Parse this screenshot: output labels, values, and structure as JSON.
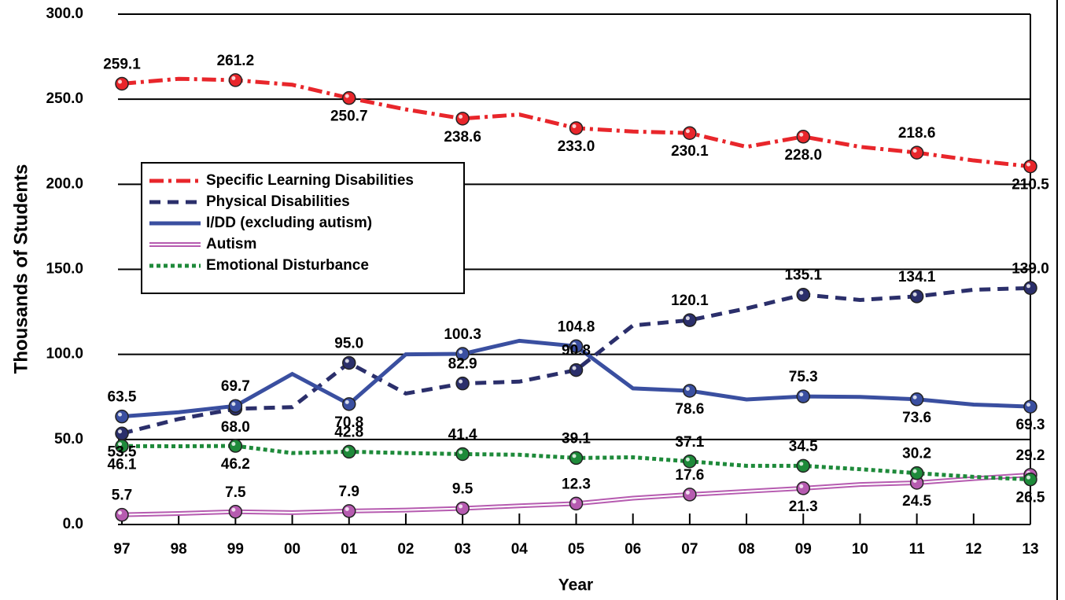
{
  "chart_data": {
    "type": "line",
    "x_label": "Year",
    "y_label": "Thousands of Students",
    "categories": [
      "97",
      "98",
      "99",
      "00",
      "01",
      "02",
      "03",
      "04",
      "05",
      "06",
      "07",
      "08",
      "09",
      "10",
      "11",
      "12",
      "13"
    ],
    "ylim": [
      0,
      300
    ],
    "yticks": [
      {
        "value": 0,
        "label": "0.0"
      },
      {
        "value": 50,
        "label": "50.0"
      },
      {
        "value": 100,
        "label": "100.0"
      },
      {
        "value": 150,
        "label": "150.0"
      },
      {
        "value": 200,
        "label": "200.0"
      },
      {
        "value": 250,
        "label": "250.0"
      },
      {
        "value": 300,
        "label": "300.0"
      }
    ],
    "grid": true,
    "legend": "upper left",
    "series": [
      {
        "name": "Specific Learning Disabilities",
        "color": "#e8262b",
        "style": "dashdot",
        "values": [
          259.1,
          262,
          261.2,
          258.5,
          250.7,
          244,
          238.6,
          241,
          233.0,
          231,
          230.1,
          222,
          228.0,
          222,
          218.6,
          214,
          210.5
        ],
        "value_labels": [
          "259.1",
          null,
          "261.2",
          null,
          "250.7",
          null,
          "238.6",
          null,
          "233.0",
          null,
          "230.1",
          null,
          "228.0",
          null,
          "218.6",
          null,
          "210.5"
        ]
      },
      {
        "name": "Physical Disabilities",
        "color": "#2b2f6b",
        "style": "dashed",
        "values": [
          53.5,
          62,
          68.0,
          69,
          95.0,
          77,
          82.9,
          84,
          90.8,
          117,
          120.1,
          127,
          135.1,
          132,
          134.1,
          138,
          139.0
        ],
        "value_labels": [
          "53.5",
          null,
          "68.0",
          null,
          "95.0",
          null,
          "82.9",
          null,
          "90.8",
          null,
          "120.1",
          null,
          "135.1",
          null,
          "134.1",
          null,
          "139.0"
        ]
      },
      {
        "name": "I/DD (excluding autism)",
        "color": "#3a4fa0",
        "style": "solid",
        "values": [
          63.5,
          66,
          69.7,
          88.5,
          70.8,
          100,
          100.3,
          108,
          104.8,
          80,
          78.6,
          73.5,
          75.3,
          75,
          73.6,
          70.5,
          69.3
        ],
        "value_labels": [
          "63.5",
          null,
          "69.7",
          null,
          "70.8",
          null,
          "100.3",
          null,
          "104.8",
          null,
          "78.6",
          null,
          "75.3",
          null,
          "73.6",
          null,
          "69.3"
        ]
      },
      {
        "name": "Autism",
        "color": "#b65bb0",
        "style": "double",
        "values": [
          5.7,
          6.5,
          7.5,
          7,
          7.9,
          8.5,
          9.5,
          11,
          12.3,
          15.5,
          17.6,
          19.5,
          21.3,
          23.5,
          24.5,
          27,
          29.2
        ],
        "value_labels": [
          "5.7",
          null,
          "7.5",
          null,
          "7.9",
          null,
          "9.5",
          null,
          "12.3",
          null,
          "17.6",
          null,
          "21.3",
          null,
          "24.5",
          null,
          "29.2"
        ]
      },
      {
        "name": "Emotional Disturbance",
        "color": "#1e8a3a",
        "style": "dotted",
        "values": [
          46.1,
          46,
          46.2,
          42,
          42.8,
          42,
          41.4,
          41,
          39.1,
          39.5,
          37.1,
          34.5,
          34.5,
          32.5,
          30.2,
          28,
          26.5
        ],
        "value_labels": [
          "46.1",
          null,
          "46.2",
          null,
          "42.8",
          null,
          "41.4",
          null,
          "39.1",
          null,
          "37.1",
          null,
          "34.5",
          null,
          "30.2",
          null,
          "26.5"
        ]
      }
    ]
  }
}
